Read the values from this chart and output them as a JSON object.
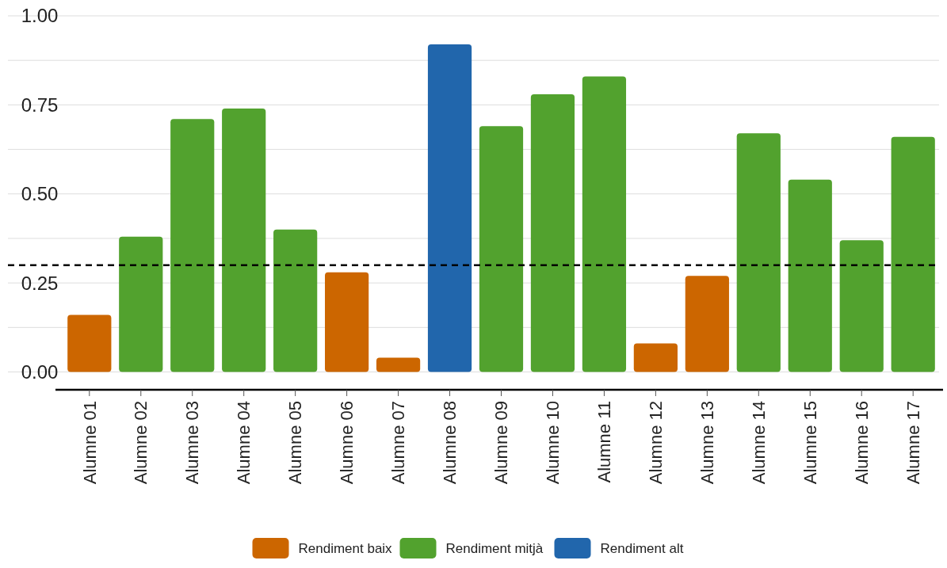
{
  "chart_data": {
    "type": "bar",
    "categories": [
      "Alumne 01",
      "Alumne 02",
      "Alumne 03",
      "Alumne 04",
      "Alumne 05",
      "Alumne 06",
      "Alumne 07",
      "Alumne 08",
      "Alumne 09",
      "Alumne 10",
      "Alumne 11",
      "Alumne 12",
      "Alumne 13",
      "Alumne 14",
      "Alumne 15",
      "Alumne 16",
      "Alumne 17"
    ],
    "series": [
      {
        "name": "Rendiment baix",
        "color": "#cc6600",
        "values": [
          0.16,
          null,
          null,
          null,
          null,
          0.28,
          0.04,
          null,
          null,
          null,
          null,
          0.08,
          0.27,
          null,
          null,
          null,
          null
        ]
      },
      {
        "name": "Rendiment mitjà",
        "color": "#52a22e",
        "values": [
          null,
          0.38,
          0.71,
          0.74,
          0.4,
          null,
          null,
          null,
          0.69,
          0.78,
          0.83,
          null,
          null,
          0.67,
          0.54,
          0.37,
          0.66
        ]
      },
      {
        "name": "Rendiment alt",
        "color": "#2166ac",
        "values": [
          null,
          null,
          null,
          null,
          null,
          null,
          null,
          0.92,
          null,
          null,
          null,
          null,
          null,
          null,
          null,
          null,
          null
        ]
      }
    ],
    "ylim": [
      -0.05,
      1.0
    ],
    "yticks": [
      {
        "value": 0,
        "label": "0.00"
      },
      {
        "value": 0.125,
        "label": null
      },
      {
        "value": 0.25,
        "label": "0.25"
      },
      {
        "value": 0.375,
        "label": null
      },
      {
        "value": 0.5,
        "label": "0.50"
      },
      {
        "value": 0.625,
        "label": null
      },
      {
        "value": 0.75,
        "label": "0.75"
      },
      {
        "value": 0.875,
        "label": null
      },
      {
        "value": 1,
        "label": "1.00"
      }
    ],
    "grid": "y",
    "legend": "bottom",
    "ref_lines": [
      {
        "axis": "y",
        "value": 0.3,
        "line_style": "dashed",
        "color": "#000000"
      }
    ]
  }
}
